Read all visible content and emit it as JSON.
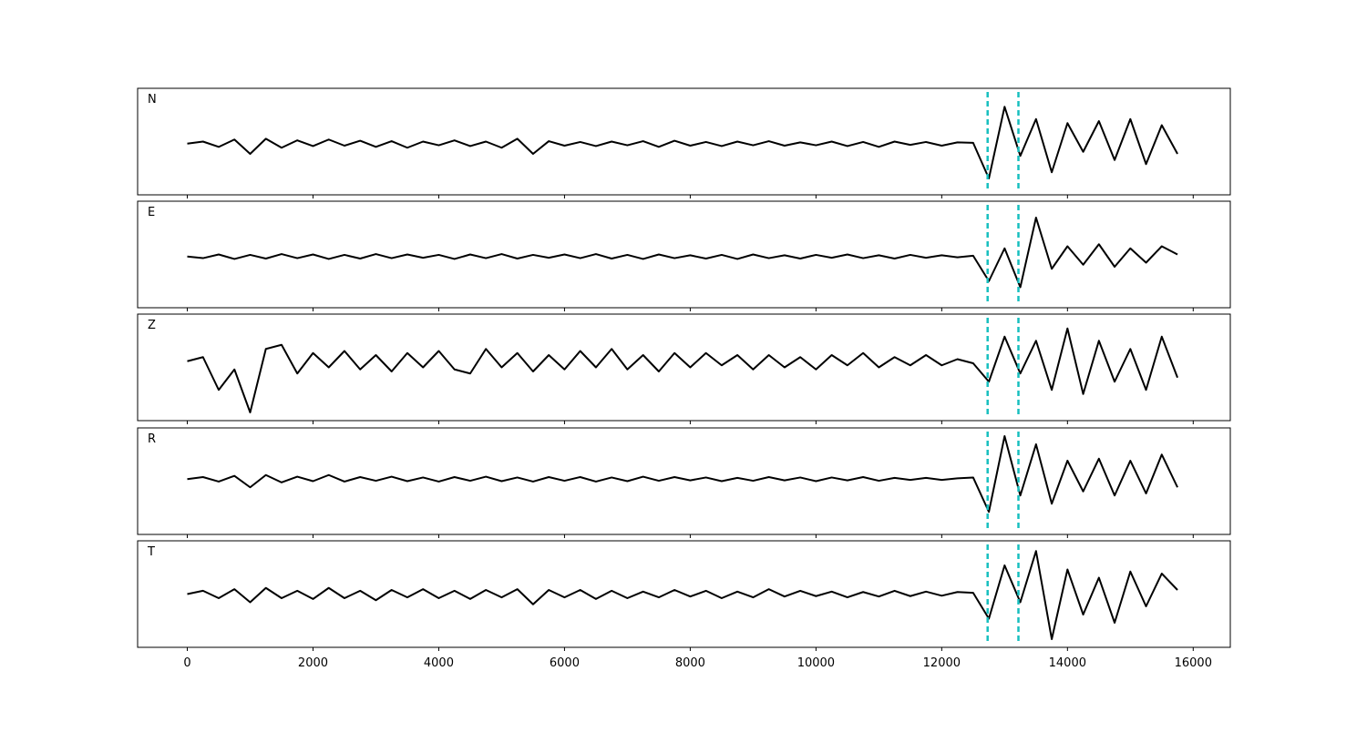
{
  "chart_data": [
    {
      "type": "line",
      "label": "N",
      "color": "#000000",
      "vlines": [
        12730,
        13220
      ],
      "vline_color": "#17bfbf",
      "xlim": [
        -790,
        16590
      ],
      "ylim": [
        -1.25,
        1.35
      ],
      "x": [
        0,
        250,
        500,
        750,
        1000,
        1250,
        1500,
        1750,
        2000,
        2250,
        2500,
        2750,
        3000,
        3250,
        3500,
        3750,
        4000,
        4250,
        4500,
        4750,
        5000,
        5250,
        5500,
        5750,
        6000,
        6250,
        6500,
        6750,
        7000,
        7250,
        7500,
        7750,
        8000,
        8250,
        8500,
        8750,
        9000,
        9250,
        9500,
        9750,
        10000,
        10250,
        10500,
        10750,
        11000,
        11250,
        11500,
        11750,
        12000,
        12250,
        12500,
        12750,
        13000,
        13250,
        13500,
        13750,
        14000,
        14250,
        14500,
        14750,
        15000,
        15250,
        15500,
        15750
      ],
      "values": [
        0,
        0.05,
        -0.08,
        0.1,
        -0.25,
        0.12,
        -0.1,
        0.08,
        -0.06,
        0.1,
        -0.05,
        0.07,
        -0.08,
        0.06,
        -0.1,
        0.05,
        -0.04,
        0.08,
        -0.06,
        0.05,
        -0.1,
        0.12,
        -0.25,
        0.06,
        -0.05,
        0.04,
        -0.06,
        0.05,
        -0.04,
        0.06,
        -0.08,
        0.07,
        -0.05,
        0.04,
        -0.06,
        0.05,
        -0.04,
        0.06,
        -0.05,
        0.03,
        -0.04,
        0.05,
        -0.06,
        0.04,
        -0.08,
        0.05,
        -0.03,
        0.04,
        -0.05,
        0.03,
        0.02,
        -0.85,
        0.9,
        -0.3,
        0.6,
        -0.7,
        0.5,
        -0.2,
        0.55,
        -0.4,
        0.6,
        -0.5,
        0.45,
        -0.25
      ]
    },
    {
      "type": "line",
      "label": "E",
      "color": "#000000",
      "vlines": [
        12730,
        13220
      ],
      "vline_color": "#17bfbf",
      "xlim": [
        -790,
        16590
      ],
      "ylim": [
        -1.25,
        1.35
      ],
      "x": [
        0,
        250,
        500,
        750,
        1000,
        1250,
        1500,
        1750,
        2000,
        2250,
        2500,
        2750,
        3000,
        3250,
        3500,
        3750,
        4000,
        4250,
        4500,
        4750,
        5000,
        5250,
        5500,
        5750,
        6000,
        6250,
        6500,
        6750,
        7000,
        7250,
        7500,
        7750,
        8000,
        8250,
        8500,
        8750,
        9000,
        9250,
        9500,
        9750,
        10000,
        10250,
        10500,
        10750,
        11000,
        11250,
        11500,
        11750,
        12000,
        12250,
        12500,
        12750,
        13000,
        13250,
        13500,
        13750,
        14000,
        14250,
        14500,
        14750,
        15000,
        15250,
        15500,
        15750
      ],
      "values": [
        0,
        -0.04,
        0.05,
        -0.06,
        0.04,
        -0.05,
        0.06,
        -0.04,
        0.05,
        -0.06,
        0.04,
        -0.05,
        0.06,
        -0.04,
        0.05,
        -0.03,
        0.04,
        -0.06,
        0.05,
        -0.04,
        0.06,
        -0.05,
        0.04,
        -0.03,
        0.05,
        -0.04,
        0.06,
        -0.05,
        0.04,
        -0.06,
        0.05,
        -0.04,
        0.03,
        -0.05,
        0.04,
        -0.06,
        0.05,
        -0.04,
        0.03,
        -0.05,
        0.04,
        -0.03,
        0.05,
        -0.04,
        0.03,
        -0.05,
        0.04,
        -0.03,
        0.03,
        -0.02,
        0.02,
        -0.6,
        0.2,
        -0.75,
        0.95,
        -0.3,
        0.25,
        -0.2,
        0.3,
        -0.25,
        0.2,
        -0.15,
        0.25,
        0.05
      ]
    },
    {
      "type": "line",
      "label": "Z",
      "color": "#000000",
      "vlines": [
        12730,
        13220
      ],
      "vline_color": "#17bfbf",
      "xlim": [
        -790,
        16590
      ],
      "ylim": [
        -1.45,
        1.15
      ],
      "x": [
        0,
        250,
        500,
        750,
        1000,
        1250,
        1500,
        1750,
        2000,
        2250,
        2500,
        2750,
        3000,
        3250,
        3500,
        3750,
        4000,
        4250,
        4500,
        4750,
        5000,
        5250,
        5500,
        5750,
        6000,
        6250,
        6500,
        6750,
        7000,
        7250,
        7500,
        7750,
        8000,
        8250,
        8500,
        8750,
        9000,
        9250,
        9500,
        9750,
        10000,
        10250,
        10500,
        10750,
        11000,
        11250,
        11500,
        11750,
        12000,
        12250,
        12500,
        12750,
        13000,
        13250,
        13500,
        13750,
        14000,
        14250,
        14500,
        14750,
        15000,
        15250,
        15500,
        15750
      ],
      "values": [
        0,
        0.1,
        -0.7,
        -0.2,
        -1.25,
        0.3,
        0.4,
        -0.3,
        0.2,
        -0.15,
        0.25,
        -0.2,
        0.15,
        -0.25,
        0.2,
        -0.15,
        0.25,
        -0.2,
        -0.3,
        0.3,
        -0.15,
        0.2,
        -0.25,
        0.15,
        -0.2,
        0.25,
        -0.15,
        0.3,
        -0.2,
        0.15,
        -0.25,
        0.2,
        -0.15,
        0.2,
        -0.1,
        0.15,
        -0.2,
        0.15,
        -0.15,
        0.1,
        -0.2,
        0.15,
        -0.1,
        0.2,
        -0.15,
        0.1,
        -0.1,
        0.15,
        -0.1,
        0.05,
        -0.05,
        -0.5,
        0.6,
        -0.3,
        0.5,
        -0.7,
        0.8,
        -0.8,
        0.5,
        -0.5,
        0.3,
        -0.7,
        0.6,
        -0.4
      ]
    },
    {
      "type": "line",
      "label": "R",
      "color": "#000000",
      "vlines": [
        12730,
        13220
      ],
      "vline_color": "#17bfbf",
      "xlim": [
        -790,
        16590
      ],
      "ylim": [
        -1.35,
        1.25
      ],
      "x": [
        0,
        250,
        500,
        750,
        1000,
        1250,
        1500,
        1750,
        2000,
        2250,
        2500,
        2750,
        3000,
        3250,
        3500,
        3750,
        4000,
        4250,
        4500,
        4750,
        5000,
        5250,
        5500,
        5750,
        6000,
        6250,
        6500,
        6750,
        7000,
        7250,
        7500,
        7750,
        8000,
        8250,
        8500,
        8750,
        9000,
        9250,
        9500,
        9750,
        10000,
        10250,
        10500,
        10750,
        11000,
        11250,
        11500,
        11750,
        12000,
        12250,
        12500,
        12750,
        13000,
        13250,
        13500,
        13750,
        14000,
        14250,
        14500,
        14750,
        15000,
        15250,
        15500,
        15750
      ],
      "values": [
        0,
        0.05,
        -0.06,
        0.08,
        -0.2,
        0.1,
        -0.08,
        0.06,
        -0.05,
        0.1,
        -0.06,
        0.05,
        -0.04,
        0.06,
        -0.05,
        0.04,
        -0.06,
        0.05,
        -0.04,
        0.06,
        -0.05,
        0.04,
        -0.06,
        0.05,
        -0.04,
        0.05,
        -0.06,
        0.04,
        -0.05,
        0.06,
        -0.04,
        0.05,
        -0.03,
        0.04,
        -0.05,
        0.03,
        -0.04,
        0.05,
        -0.03,
        0.04,
        -0.05,
        0.04,
        -0.03,
        0.05,
        -0.04,
        0.03,
        -0.02,
        0.03,
        -0.02,
        0.02,
        0.04,
        -0.8,
        1.05,
        -0.4,
        0.85,
        -0.6,
        0.45,
        -0.3,
        0.5,
        -0.4,
        0.45,
        -0.35,
        0.6,
        -0.2
      ]
    },
    {
      "type": "line",
      "label": "T",
      "color": "#000000",
      "vlines": [
        12730,
        13220
      ],
      "vline_color": "#17bfbf",
      "xlim": [
        -790,
        16590
      ],
      "ylim": [
        -1.3,
        1.3
      ],
      "xticks": [
        0,
        2000,
        4000,
        6000,
        8000,
        10000,
        12000,
        14000,
        16000
      ],
      "x": [
        0,
        250,
        500,
        750,
        1000,
        1250,
        1500,
        1750,
        2000,
        2250,
        2500,
        2750,
        3000,
        3250,
        3500,
        3750,
        4000,
        4250,
        4500,
        4750,
        5000,
        5250,
        5500,
        5750,
        6000,
        6250,
        6500,
        6750,
        7000,
        7250,
        7500,
        7750,
        8000,
        8250,
        8500,
        8750,
        9000,
        9250,
        9500,
        9750,
        10000,
        10250,
        10500,
        10750,
        11000,
        11250,
        11500,
        11750,
        12000,
        12250,
        12500,
        12750,
        13000,
        13250,
        13500,
        13750,
        14000,
        14250,
        14500,
        14750,
        15000,
        15250,
        15500,
        15750
      ],
      "values": [
        0,
        0.08,
        -0.1,
        0.12,
        -0.2,
        0.15,
        -0.1,
        0.08,
        -0.12,
        0.15,
        -0.1,
        0.08,
        -0.15,
        0.1,
        -0.08,
        0.12,
        -0.1,
        0.08,
        -0.12,
        0.1,
        -0.08,
        0.12,
        -0.25,
        0.1,
        -0.08,
        0.1,
        -0.12,
        0.08,
        -0.1,
        0.06,
        -0.08,
        0.1,
        -0.06,
        0.08,
        -0.1,
        0.06,
        -0.08,
        0.12,
        -0.06,
        0.08,
        -0.05,
        0.06,
        -0.08,
        0.05,
        -0.06,
        0.08,
        -0.05,
        0.06,
        -0.04,
        0.05,
        0.03,
        -0.6,
        0.7,
        -0.2,
        1.05,
        -1.1,
        0.6,
        -0.5,
        0.4,
        -0.7,
        0.55,
        -0.3,
        0.5,
        0.1
      ]
    }
  ]
}
